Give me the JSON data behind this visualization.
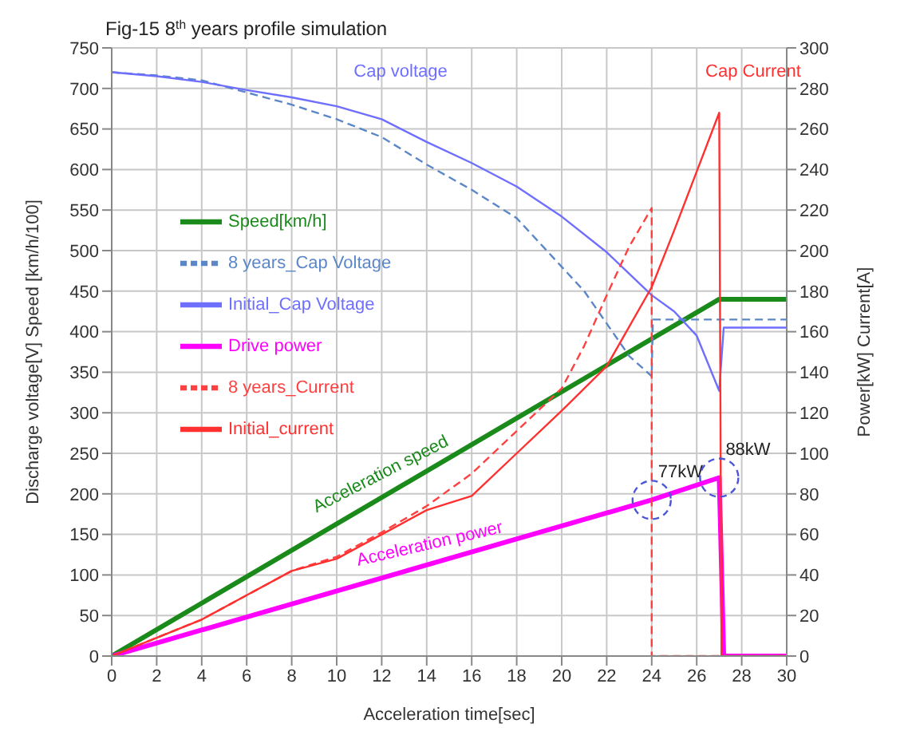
{
  "chart_data": {
    "type": "line",
    "title": "Fig-15 8$^{th}$ years  profile simulation",
    "xlabel": "Acceleration time[sec]",
    "ylabel": "Discharge voltage[V]        Speed [km/h/100]",
    "y2label": "Power[kW]                Current[A]",
    "xlim": [
      0,
      30
    ],
    "xticks": [
      0,
      2,
      4,
      6,
      8,
      10,
      12,
      14,
      16,
      18,
      20,
      22,
      24,
      26,
      28,
      30
    ],
    "ylim": [
      0,
      750
    ],
    "yticks": [
      0,
      50,
      100,
      150,
      200,
      250,
      300,
      350,
      400,
      450,
      500,
      550,
      600,
      650,
      700,
      750
    ],
    "y2lim": [
      0,
      300
    ],
    "y2ticks": [
      0,
      20,
      40,
      60,
      80,
      100,
      120,
      140,
      160,
      180,
      200,
      220,
      240,
      260,
      280,
      300
    ],
    "grid": true,
    "legend": "left",
    "marker": "none",
    "series": [
      {
        "name": "Speed[km/h]",
        "color": "#1a8a1a",
        "line_style": "solid",
        "x": [
          0,
          27,
          30
        ],
        "values": [
          0,
          440,
          440
        ]
      },
      {
        "name": "8 years_Cap Voltage",
        "color": "#5b87c8",
        "line_style": "dashed",
        "x": [
          0,
          2,
          4,
          6,
          8,
          10,
          12,
          14,
          16,
          18,
          20,
          21,
          22,
          23,
          24,
          24.05,
          30
        ],
        "values": [
          720,
          716,
          710,
          695,
          680,
          662,
          640,
          606,
          575,
          540,
          480,
          450,
          410,
          370,
          345,
          415,
          415
        ]
      },
      {
        "name": "Initial_Cap Voltage",
        "color": "#6e6eff",
        "line_style": "solid",
        "x": [
          0,
          2,
          4,
          6,
          8,
          10,
          12,
          14,
          16,
          18,
          20,
          22,
          24,
          25,
          26,
          27,
          27.2,
          30
        ],
        "values": [
          720,
          715,
          708,
          698,
          689,
          678,
          662,
          634,
          608,
          579,
          542,
          498,
          445,
          425,
          395,
          327,
          405,
          405
        ]
      },
      {
        "name": "Drive power",
        "color": "#ff00ff",
        "line_style": "solid",
        "axis": "y2",
        "x": [
          0,
          24,
          27,
          27.2,
          30
        ],
        "values": [
          0,
          77,
          88,
          0,
          0
        ]
      },
      {
        "name": "8 years_Current",
        "color": "#ff4040",
        "line_style": "dashed",
        "axis": "y2",
        "x": [
          0,
          2,
          4,
          6,
          8,
          10,
          12,
          14,
          16,
          18,
          20,
          21,
          22,
          23,
          24,
          24,
          30
        ],
        "values": [
          0,
          9,
          18,
          30,
          42,
          49,
          61,
          74,
          90,
          111,
          132,
          153,
          178,
          202,
          221,
          0,
          0
        ]
      },
      {
        "name": "Initial_current",
        "color": "#ff3030",
        "line_style": "solid",
        "axis": "y2",
        "x": [
          0,
          2,
          4,
          6,
          8,
          10,
          12,
          14,
          16,
          18,
          20,
          22,
          24,
          25,
          26,
          27,
          27.1,
          30
        ],
        "values": [
          0,
          9,
          18,
          30,
          42,
          48,
          60,
          72,
          79,
          100,
          121,
          143,
          182,
          210,
          239,
          268,
          0,
          0
        ]
      }
    ],
    "annotations": [
      "Cap voltage",
      "Cap Current",
      "Acceleration speed",
      "Acceleration power",
      {
        "text": "77kW",
        "x": 24,
        "y": 192.5
      },
      {
        "text": "88kW",
        "x": 27,
        "y": 220
      }
    ]
  }
}
